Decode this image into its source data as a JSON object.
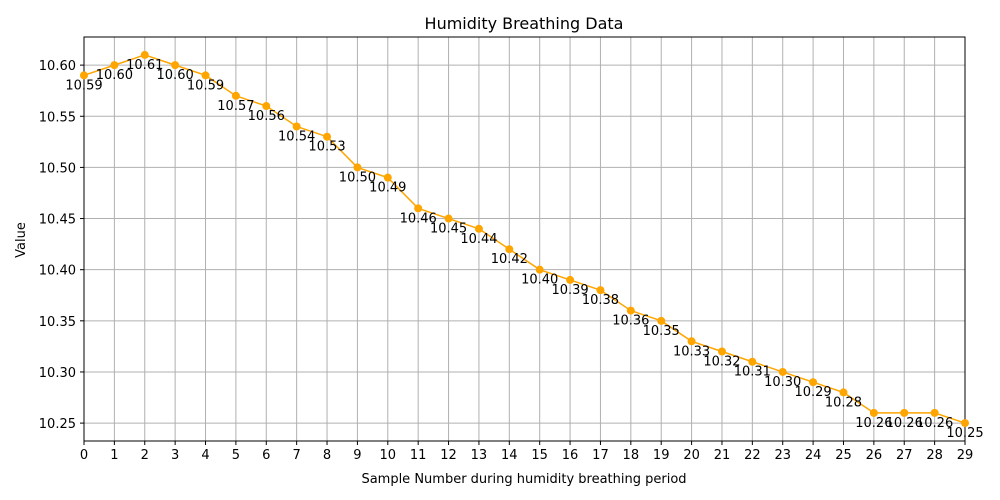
{
  "chart_data": {
    "type": "line",
    "title": "Humidity Breathing Data",
    "xlabel": "Sample Number during humidity breathing period",
    "ylabel": "Value",
    "x": [
      0,
      1,
      2,
      3,
      4,
      5,
      6,
      7,
      8,
      9,
      10,
      11,
      12,
      13,
      14,
      15,
      16,
      17,
      18,
      19,
      20,
      21,
      22,
      23,
      24,
      25,
      26,
      27,
      28,
      29
    ],
    "series": [
      {
        "values": [
          10.59,
          10.6,
          10.61,
          10.6,
          10.59,
          10.57,
          10.56,
          10.54,
          10.53,
          10.5,
          10.49,
          10.46,
          10.45,
          10.44,
          10.42,
          10.4,
          10.39,
          10.38,
          10.36,
          10.35,
          10.33,
          10.32,
          10.31,
          10.3,
          10.29,
          10.28,
          10.26,
          10.26,
          10.26,
          10.25
        ],
        "data_labels": [
          "10.59",
          "10.60",
          "10.61",
          "10.60",
          "10.59",
          "10.57",
          "10.56",
          "10.54",
          "10.53",
          "10.50",
          "10.49",
          "10.46",
          "10.45",
          "10.44",
          "10.42",
          "10.40",
          "10.39",
          "10.38",
          "10.36",
          "10.35",
          "10.33",
          "10.32",
          "10.31",
          "10.30",
          "10.29",
          "10.28",
          "10.26",
          "10.26",
          "10.26",
          "10.25"
        ],
        "color": "#ffa500"
      }
    ],
    "xlim": [
      0,
      29
    ],
    "ylim": [
      10.2325,
      10.6275
    ],
    "xticks": [
      "0",
      "1",
      "2",
      "3",
      "4",
      "5",
      "6",
      "7",
      "8",
      "9",
      "10",
      "11",
      "12",
      "13",
      "14",
      "15",
      "16",
      "17",
      "18",
      "19",
      "20",
      "21",
      "22",
      "23",
      "24",
      "25",
      "26",
      "27",
      "28",
      "29"
    ],
    "yticks": [
      10.25,
      10.3,
      10.35,
      10.4,
      10.45,
      10.5,
      10.55,
      10.6
    ],
    "ytick_labels": [
      "10.25",
      "10.30",
      "10.35",
      "10.40",
      "10.45",
      "10.50",
      "10.55",
      "10.60"
    ],
    "grid": true,
    "marker": "circle"
  }
}
